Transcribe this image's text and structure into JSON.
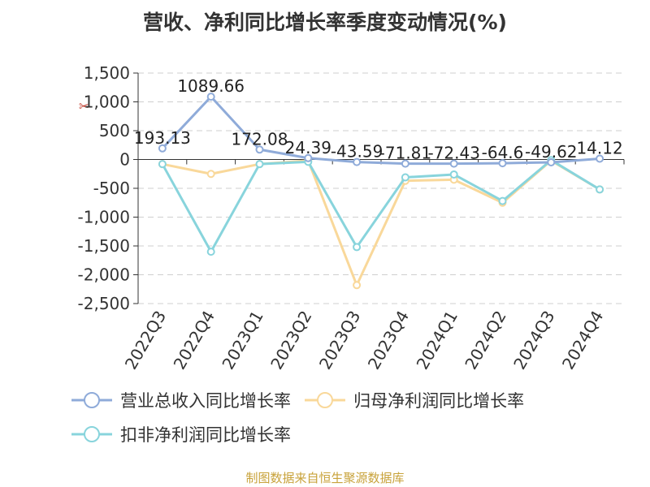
{
  "title": "营收、净利同比增长率季度变动情况(%)",
  "source": "制图数据来自恒生聚源数据库",
  "toolbox_icon": "scissors-icon",
  "chart_data": {
    "type": "line",
    "categories": [
      "2022Q3",
      "2022Q4",
      "2023Q1",
      "2023Q2",
      "2023Q3",
      "2023Q4",
      "2024Q1",
      "2024Q2",
      "2024Q3",
      "2024Q4"
    ],
    "ylim": [
      -2500,
      1500
    ],
    "yticks": [
      1500,
      1000,
      500,
      0,
      -500,
      -1000,
      -1500,
      -2000,
      -2500
    ],
    "ytick_labels": [
      "1,500",
      "1,000",
      "500",
      "0",
      "-500",
      "-1,000",
      "-1,500",
      "-2,000",
      "-2,500"
    ],
    "grid": true,
    "legend_position": "bottom",
    "series": [
      {
        "name": "营业总收入同比增长率",
        "color": "#8fabd9",
        "values": [
          193.13,
          1089.66,
          172.08,
          24.39,
          -43.59,
          -71.81,
          -72.43,
          -64.6,
          -49.62,
          14.12
        ],
        "labels": [
          "193.13",
          "1089.66",
          "172.08",
          "24.39",
          "-43.59",
          "-71.81",
          "-72.43",
          "-64.6",
          "-49.62",
          "14.12"
        ]
      },
      {
        "name": "归母净利润同比增长率",
        "color": "#f9d89a",
        "values": [
          -80,
          -250,
          -80,
          -20,
          -2180,
          -370,
          -350,
          -750,
          -20,
          -520
        ]
      },
      {
        "name": "扣非净利润同比增长率",
        "color": "#88d4dc",
        "values": [
          -80,
          -1600,
          -80,
          -40,
          -1520,
          -310,
          -260,
          -720,
          -10,
          -520
        ]
      }
    ]
  }
}
